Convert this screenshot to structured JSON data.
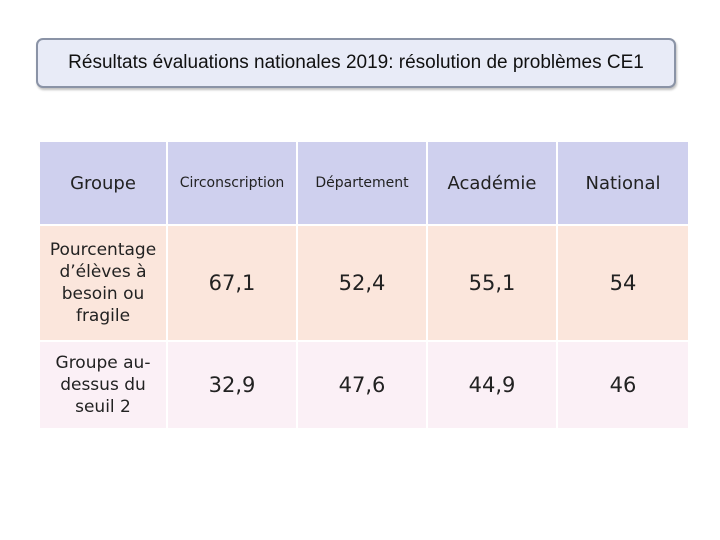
{
  "title": "Résultats évaluations nationales 2019: résolution de problèmes CE1",
  "table": {
    "headers": [
      "Groupe",
      "Circonscription",
      "Département",
      "Académie",
      "National"
    ],
    "rows": [
      {
        "label": "Pourcentage d’élèves à besoin ou fragile",
        "values": [
          "67,1",
          "52,4",
          "55,1",
          "54"
        ]
      },
      {
        "label": "Groupe au-dessus du seuil 2",
        "values": [
          "32,9",
          "47,6",
          "44,9",
          "46"
        ]
      }
    ]
  },
  "colors": {
    "header_fill": "#cfd0ee",
    "row1_fill": "#fbe6dc",
    "row2_fill": "#fbf0f6",
    "title_box_fill": "#e8ebf7"
  }
}
